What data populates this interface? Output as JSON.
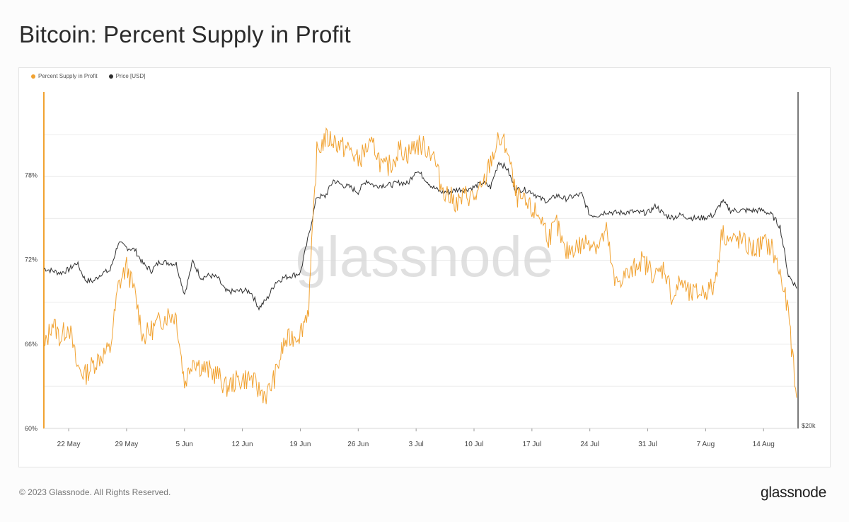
{
  "title": "Bitcoin: Percent Supply in Profit",
  "footer": {
    "copyright": "© 2023 Glassnode. All Rights Reserved.",
    "logo": "glassnode"
  },
  "watermark": "glassnode",
  "colors": {
    "profit": "#F1A231",
    "price": "#2f2f2f",
    "grid": "#ececec",
    "axis": "#444444"
  },
  "chart_data": {
    "type": "line",
    "legend": [
      {
        "name": "Percent Supply in Profit",
        "color": "#F1A231"
      },
      {
        "name": "Price [USD]",
        "color": "#2f2f2f"
      }
    ],
    "legend_position": "top-left",
    "x_tick_labels": [
      "22 May",
      "29 May",
      "5 Jun",
      "12 Jun",
      "19 Jun",
      "26 Jun",
      "3 Jul",
      "10 Jul",
      "17 Jul",
      "24 Jul",
      "31 Jul",
      "7 Aug",
      "14 Aug"
    ],
    "y_left_tick_labels": [
      "60%",
      "66%",
      "72%",
      "78%"
    ],
    "y_left_ticks": [
      60,
      66,
      72,
      78
    ],
    "y_left_range": [
      60,
      83.9
    ],
    "y_right_tick_labels": [
      "$20k"
    ],
    "y_right_ticks": [
      20000
    ],
    "y_right_range": [
      20000,
      34500
    ],
    "x_range": [
      "2023-05-19",
      "2023-08-18"
    ],
    "grid": "horizontal",
    "series": [
      {
        "name": "Percent Supply in Profit",
        "axis": "left",
        "dates": [
          "2023-05-19",
          "2023-05-20",
          "2023-05-21",
          "2023-05-22",
          "2023-05-23",
          "2023-05-24",
          "2023-05-25",
          "2023-05-26",
          "2023-05-27",
          "2023-05-28",
          "2023-05-29",
          "2023-05-30",
          "2023-05-31",
          "2023-06-01",
          "2023-06-02",
          "2023-06-03",
          "2023-06-04",
          "2023-06-05",
          "2023-06-06",
          "2023-06-07",
          "2023-06-08",
          "2023-06-09",
          "2023-06-10",
          "2023-06-11",
          "2023-06-12",
          "2023-06-13",
          "2023-06-14",
          "2023-06-15",
          "2023-06-16",
          "2023-06-17",
          "2023-06-18",
          "2023-06-19",
          "2023-06-20",
          "2023-06-21",
          "2023-06-22",
          "2023-06-23",
          "2023-06-24",
          "2023-06-25",
          "2023-06-26",
          "2023-06-27",
          "2023-06-28",
          "2023-06-29",
          "2023-06-30",
          "2023-07-01",
          "2023-07-02",
          "2023-07-03",
          "2023-07-04",
          "2023-07-05",
          "2023-07-06",
          "2023-07-07",
          "2023-07-08",
          "2023-07-09",
          "2023-07-10",
          "2023-07-11",
          "2023-07-12",
          "2023-07-13",
          "2023-07-14",
          "2023-07-15",
          "2023-07-16",
          "2023-07-17",
          "2023-07-18",
          "2023-07-19",
          "2023-07-20",
          "2023-07-21",
          "2023-07-22",
          "2023-07-23",
          "2023-07-24",
          "2023-07-25",
          "2023-07-26",
          "2023-07-27",
          "2023-07-28",
          "2023-07-29",
          "2023-07-30",
          "2023-07-31",
          "2023-08-01",
          "2023-08-02",
          "2023-08-03",
          "2023-08-04",
          "2023-08-05",
          "2023-08-06",
          "2023-08-07",
          "2023-08-08",
          "2023-08-09",
          "2023-08-10",
          "2023-08-11",
          "2023-08-12",
          "2023-08-13",
          "2023-08-14",
          "2023-08-15",
          "2023-08-16",
          "2023-08-17",
          "2023-08-18"
        ],
        "values": [
          65.5,
          67.6,
          66.4,
          67.4,
          64.4,
          63.8,
          64.6,
          65.2,
          65.6,
          70.1,
          71.5,
          69.6,
          66.5,
          67.0,
          67.6,
          68.1,
          68.0,
          63.2,
          65.0,
          64.4,
          64.1,
          63.8,
          62.9,
          63.3,
          63.5,
          63.6,
          62.7,
          62.4,
          63.8,
          66.0,
          66.5,
          66.8,
          68.6,
          79.6,
          80.6,
          80.5,
          80.0,
          79.8,
          79.0,
          79.9,
          80.0,
          78.4,
          78.8,
          79.9,
          79.5,
          80.2,
          80.0,
          79.6,
          77.3,
          76.5,
          76.0,
          76.6,
          76.4,
          77.0,
          79.0,
          80.5,
          80.0,
          76.6,
          76.0,
          75.5,
          75.1,
          73.6,
          74.5,
          72.4,
          72.9,
          73.0,
          73.4,
          73.0,
          74.0,
          70.2,
          70.8,
          71.0,
          72.0,
          71.5,
          70.8,
          71.5,
          69.2,
          70.5,
          69.5,
          69.6,
          69.8,
          70.0,
          74.0,
          73.3,
          73.4,
          73.0,
          72.7,
          73.2,
          72.8,
          71.0,
          68.2,
          62.0
        ]
      },
      {
        "name": "Price [USD]",
        "axis": "right",
        "dates": [
          "2023-05-19",
          "2023-05-20",
          "2023-05-21",
          "2023-05-22",
          "2023-05-23",
          "2023-05-24",
          "2023-05-25",
          "2023-05-26",
          "2023-05-27",
          "2023-05-28",
          "2023-05-29",
          "2023-05-30",
          "2023-05-31",
          "2023-06-01",
          "2023-06-02",
          "2023-06-03",
          "2023-06-04",
          "2023-06-05",
          "2023-06-06",
          "2023-06-07",
          "2023-06-08",
          "2023-06-09",
          "2023-06-10",
          "2023-06-11",
          "2023-06-12",
          "2023-06-13",
          "2023-06-14",
          "2023-06-15",
          "2023-06-16",
          "2023-06-17",
          "2023-06-18",
          "2023-06-19",
          "2023-06-20",
          "2023-06-21",
          "2023-06-22",
          "2023-06-23",
          "2023-06-24",
          "2023-06-25",
          "2023-06-26",
          "2023-06-27",
          "2023-06-28",
          "2023-06-29",
          "2023-06-30",
          "2023-07-01",
          "2023-07-02",
          "2023-07-03",
          "2023-07-04",
          "2023-07-05",
          "2023-07-06",
          "2023-07-07",
          "2023-07-08",
          "2023-07-09",
          "2023-07-10",
          "2023-07-11",
          "2023-07-12",
          "2023-07-13",
          "2023-07-14",
          "2023-07-15",
          "2023-07-16",
          "2023-07-17",
          "2023-07-18",
          "2023-07-19",
          "2023-07-20",
          "2023-07-21",
          "2023-07-22",
          "2023-07-23",
          "2023-07-24",
          "2023-07-25",
          "2023-07-26",
          "2023-07-27",
          "2023-07-28",
          "2023-07-29",
          "2023-07-30",
          "2023-07-31",
          "2023-08-01",
          "2023-08-02",
          "2023-08-03",
          "2023-08-04",
          "2023-08-05",
          "2023-08-06",
          "2023-08-07",
          "2023-08-08",
          "2023-08-09",
          "2023-08-10",
          "2023-08-11",
          "2023-08-12",
          "2023-08-13",
          "2023-08-14",
          "2023-08-15",
          "2023-08-16",
          "2023-08-17",
          "2023-08-18"
        ],
        "values": [
          26900,
          26800,
          26700,
          26850,
          27150,
          26400,
          26350,
          26700,
          26800,
          28000,
          27800,
          27700,
          27100,
          26800,
          27200,
          27150,
          27100,
          25800,
          27200,
          26500,
          26600,
          26500,
          25900,
          25900,
          25950,
          25900,
          25200,
          25600,
          26300,
          26500,
          26600,
          26700,
          28300,
          30000,
          30000,
          30700,
          30500,
          30400,
          30200,
          30700,
          30450,
          30500,
          30500,
          30600,
          30550,
          31150,
          30800,
          30400,
          30200,
          30200,
          30300,
          30300,
          30400,
          30600,
          30400,
          31500,
          31200,
          30300,
          30300,
          30200,
          29900,
          29800,
          30050,
          29900,
          30000,
          30100,
          29200,
          29200,
          29350,
          29300,
          29300,
          29350,
          29300,
          29300,
          29600,
          29200,
          29100,
          29200,
          29100,
          29050,
          29100,
          29200,
          29800,
          29400,
          29400,
          29400,
          29400,
          29400,
          29200,
          28700,
          26600,
          26100
        ]
      }
    ]
  }
}
